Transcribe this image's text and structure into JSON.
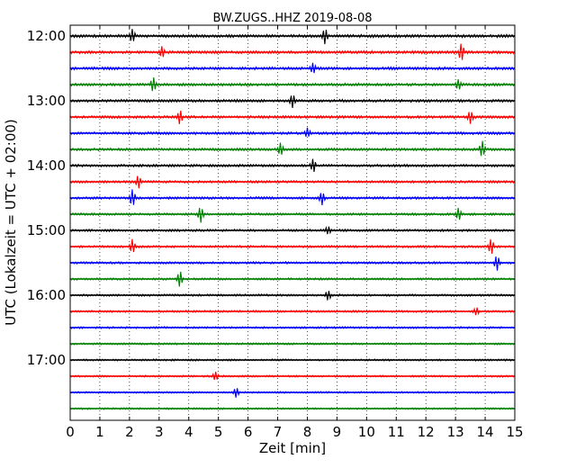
{
  "chart_data": {
    "type": "line",
    "title": "BW.ZUGS..HHZ 2019-08-08",
    "xlabel": "Zeit  [min]",
    "ylabel": "UTC (Lokalzeit = UTC + 02:00)",
    "xlim": [
      0,
      15
    ],
    "x_ticks": [
      "0",
      "1",
      "2",
      "3",
      "4",
      "5",
      "6",
      "7",
      "8",
      "9",
      "10",
      "11",
      "12",
      "13",
      "14",
      "15"
    ],
    "y_time_labels": [
      "12:00",
      "13:00",
      "14:00",
      "15:00",
      "16:00",
      "17:00"
    ],
    "grid": "vertical dotted",
    "colors": [
      "#000000",
      "#ff0000",
      "#0000ff",
      "#008000"
    ],
    "traces": [
      {
        "start": "12:00",
        "spikes": [
          [
            2.1,
            1.0
          ],
          [
            8.6,
            1.2
          ]
        ]
      },
      {
        "start": "12:15",
        "spikes": [
          [
            3.1,
            0.8
          ],
          [
            13.2,
            1.4
          ]
        ]
      },
      {
        "start": "12:30",
        "spikes": [
          [
            8.2,
            0.8
          ]
        ]
      },
      {
        "start": "12:45",
        "spikes": [
          [
            2.8,
            1.2
          ],
          [
            13.1,
            0.8
          ]
        ]
      },
      {
        "start": "13:00",
        "spikes": [
          [
            7.5,
            1.0
          ]
        ]
      },
      {
        "start": "13:15",
        "spikes": [
          [
            3.7,
            1.1
          ],
          [
            13.5,
            1.0
          ]
        ]
      },
      {
        "start": "13:30",
        "spikes": [
          [
            8.0,
            0.7
          ]
        ]
      },
      {
        "start": "13:45",
        "spikes": [
          [
            7.1,
            1.0
          ],
          [
            13.9,
            1.3
          ]
        ]
      },
      {
        "start": "14:00",
        "spikes": [
          [
            8.2,
            1.1
          ]
        ]
      },
      {
        "start": "14:15",
        "spikes": [
          [
            2.3,
            1.0
          ]
        ]
      },
      {
        "start": "14:30",
        "spikes": [
          [
            2.1,
            1.4
          ],
          [
            8.5,
            1.0
          ]
        ]
      },
      {
        "start": "14:45",
        "spikes": [
          [
            4.4,
            1.3
          ],
          [
            13.1,
            1.0
          ]
        ]
      },
      {
        "start": "15:00",
        "spikes": [
          [
            8.7,
            0.6
          ]
        ]
      },
      {
        "start": "15:15",
        "spikes": [
          [
            2.1,
            1.1
          ],
          [
            14.2,
            1.3
          ]
        ]
      },
      {
        "start": "15:30",
        "spikes": [
          [
            14.4,
            1.2
          ]
        ]
      },
      {
        "start": "15:45",
        "spikes": [
          [
            3.7,
            1.3
          ]
        ]
      },
      {
        "start": "16:00",
        "spikes": [
          [
            8.7,
            0.8
          ]
        ]
      },
      {
        "start": "16:15",
        "spikes": [
          [
            13.7,
            0.6
          ]
        ]
      },
      {
        "start": "16:30",
        "spikes": []
      },
      {
        "start": "16:45",
        "spikes": []
      },
      {
        "start": "17:00",
        "spikes": []
      },
      {
        "start": "17:15",
        "spikes": [
          [
            4.9,
            0.7
          ]
        ]
      },
      {
        "start": "17:30",
        "spikes": [
          [
            5.6,
            0.8
          ]
        ]
      },
      {
        "start": "17:45",
        "spikes": []
      }
    ]
  }
}
